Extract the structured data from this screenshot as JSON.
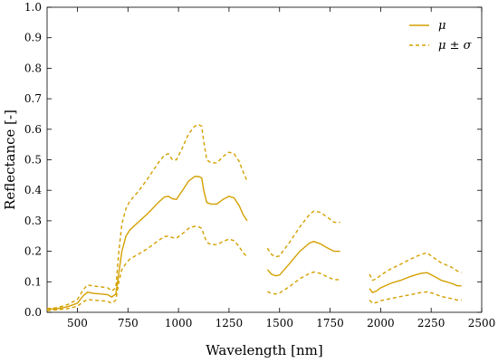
{
  "chart_data": {
    "type": "line",
    "xlabel": "Wavelength [nm]",
    "ylabel": "Reflectance [-]",
    "xlim": [
      350,
      2500
    ],
    "ylim": [
      0,
      1.0
    ],
    "x_ticks": [
      500,
      750,
      1000,
      1250,
      1500,
      1750,
      2000,
      2250,
      2500
    ],
    "x_tick_labels": [
      "500",
      "750",
      "1000",
      "1250",
      "1500",
      "1750",
      "2000",
      "2250",
      "2500"
    ],
    "y_ticks": [
      0.0,
      0.1,
      0.2,
      0.3,
      0.4,
      0.5,
      0.6,
      0.7,
      0.8,
      0.9,
      1.0
    ],
    "y_tick_labels": [
      "0.0",
      "0.1",
      "0.2",
      "0.3",
      "0.4",
      "0.5",
      "0.6",
      "0.7",
      "0.8",
      "0.9",
      "1.0"
    ],
    "grid": false,
    "legend_position": "top-right",
    "color": "#d4a000",
    "legend": [
      {
        "label": "μ",
        "style": "solid"
      },
      {
        "label": "μ ± σ",
        "style": "dashed"
      }
    ],
    "series": [
      {
        "name": "μ",
        "style": "solid",
        "segments": [
          [
            [
              350,
              0.01
            ],
            [
              400,
              0.012
            ],
            [
              450,
              0.018
            ],
            [
              500,
              0.03
            ],
            [
              530,
              0.055
            ],
            [
              550,
              0.066
            ],
            [
              580,
              0.062
            ],
            [
              620,
              0.06
            ],
            [
              650,
              0.058
            ],
            [
              670,
              0.05
            ],
            [
              690,
              0.06
            ],
            [
              705,
              0.13
            ],
            [
              720,
              0.2
            ],
            [
              740,
              0.25
            ],
            [
              760,
              0.27
            ],
            [
              800,
              0.295
            ],
            [
              850,
              0.325
            ],
            [
              900,
              0.36
            ],
            [
              930,
              0.378
            ],
            [
              950,
              0.38
            ],
            [
              970,
              0.372
            ],
            [
              990,
              0.37
            ],
            [
              1020,
              0.4
            ],
            [
              1050,
              0.43
            ],
            [
              1080,
              0.445
            ],
            [
              1100,
              0.445
            ],
            [
              1115,
              0.44
            ],
            [
              1125,
              0.4
            ],
            [
              1140,
              0.36
            ],
            [
              1160,
              0.355
            ],
            [
              1190,
              0.355
            ],
            [
              1220,
              0.37
            ],
            [
              1250,
              0.38
            ],
            [
              1275,
              0.375
            ],
            [
              1300,
              0.35
            ],
            [
              1320,
              0.32
            ],
            [
              1340,
              0.3
            ]
          ],
          [
            [
              1440,
              0.14
            ],
            [
              1460,
              0.125
            ],
            [
              1480,
              0.12
            ],
            [
              1500,
              0.122
            ],
            [
              1550,
              0.16
            ],
            [
              1600,
              0.2
            ],
            [
              1650,
              0.228
            ],
            [
              1670,
              0.232
            ],
            [
              1700,
              0.225
            ],
            [
              1740,
              0.21
            ],
            [
              1770,
              0.2
            ],
            [
              1800,
              0.2
            ]
          ],
          [
            [
              1945,
              0.078
            ],
            [
              1960,
              0.065
            ],
            [
              1980,
              0.07
            ],
            [
              2000,
              0.08
            ],
            [
              2050,
              0.095
            ],
            [
              2100,
              0.105
            ],
            [
              2150,
              0.118
            ],
            [
              2200,
              0.128
            ],
            [
              2230,
              0.13
            ],
            [
              2260,
              0.12
            ],
            [
              2300,
              0.105
            ],
            [
              2350,
              0.095
            ],
            [
              2380,
              0.087
            ],
            [
              2400,
              0.087
            ]
          ]
        ]
      },
      {
        "name": "μ ± σ",
        "style": "dashed",
        "segments": [
          [
            [
              350,
              0.012
            ],
            [
              400,
              0.015
            ],
            [
              450,
              0.025
            ],
            [
              500,
              0.042
            ],
            [
              530,
              0.075
            ],
            [
              550,
              0.09
            ],
            [
              580,
              0.086
            ],
            [
              620,
              0.083
            ],
            [
              650,
              0.08
            ],
            [
              670,
              0.07
            ],
            [
              690,
              0.08
            ],
            [
              705,
              0.2
            ],
            [
              720,
              0.29
            ],
            [
              740,
              0.34
            ],
            [
              760,
              0.365
            ],
            [
              800,
              0.395
            ],
            [
              850,
              0.44
            ],
            [
              900,
              0.49
            ],
            [
              930,
              0.515
            ],
            [
              950,
              0.52
            ],
            [
              970,
              0.5
            ],
            [
              990,
              0.5
            ],
            [
              1020,
              0.54
            ],
            [
              1050,
              0.585
            ],
            [
              1080,
              0.61
            ],
            [
              1100,
              0.615
            ],
            [
              1115,
              0.61
            ],
            [
              1125,
              0.56
            ],
            [
              1140,
              0.5
            ],
            [
              1160,
              0.49
            ],
            [
              1190,
              0.49
            ],
            [
              1220,
              0.51
            ],
            [
              1250,
              0.525
            ],
            [
              1275,
              0.52
            ],
            [
              1300,
              0.495
            ],
            [
              1320,
              0.46
            ],
            [
              1340,
              0.43
            ]
          ],
          [
            [
              1440,
              0.21
            ],
            [
              1460,
              0.19
            ],
            [
              1480,
              0.182
            ],
            [
              1500,
              0.185
            ],
            [
              1550,
              0.23
            ],
            [
              1600,
              0.28
            ],
            [
              1650,
              0.322
            ],
            [
              1670,
              0.332
            ],
            [
              1700,
              0.328
            ],
            [
              1740,
              0.31
            ],
            [
              1770,
              0.295
            ],
            [
              1800,
              0.295
            ]
          ],
          [
            [
              1945,
              0.125
            ],
            [
              1960,
              0.105
            ],
            [
              1980,
              0.11
            ],
            [
              2000,
              0.122
            ],
            [
              2050,
              0.142
            ],
            [
              2100,
              0.158
            ],
            [
              2150,
              0.175
            ],
            [
              2200,
              0.19
            ],
            [
              2230,
              0.195
            ],
            [
              2260,
              0.18
            ],
            [
              2300,
              0.162
            ],
            [
              2350,
              0.148
            ],
            [
              2380,
              0.135
            ],
            [
              2400,
              0.13
            ]
          ]
        ]
      },
      {
        "name": "μ − σ",
        "style": "dashed",
        "segments": [
          [
            [
              350,
              0.006
            ],
            [
              400,
              0.008
            ],
            [
              450,
              0.012
            ],
            [
              500,
              0.02
            ],
            [
              530,
              0.035
            ],
            [
              550,
              0.042
            ],
            [
              580,
              0.04
            ],
            [
              620,
              0.038
            ],
            [
              650,
              0.036
            ],
            [
              670,
              0.03
            ],
            [
              690,
              0.04
            ],
            [
              705,
              0.1
            ],
            [
              720,
              0.14
            ],
            [
              740,
              0.16
            ],
            [
              760,
              0.175
            ],
            [
              800,
              0.19
            ],
            [
              850,
              0.21
            ],
            [
              900,
              0.235
            ],
            [
              930,
              0.248
            ],
            [
              950,
              0.25
            ],
            [
              970,
              0.245
            ],
            [
              990,
              0.243
            ],
            [
              1020,
              0.258
            ],
            [
              1050,
              0.275
            ],
            [
              1080,
              0.282
            ],
            [
              1100,
              0.28
            ],
            [
              1115,
              0.275
            ],
            [
              1125,
              0.255
            ],
            [
              1140,
              0.23
            ],
            [
              1160,
              0.222
            ],
            [
              1190,
              0.222
            ],
            [
              1220,
              0.232
            ],
            [
              1250,
              0.24
            ],
            [
              1275,
              0.235
            ],
            [
              1300,
              0.215
            ],
            [
              1320,
              0.195
            ],
            [
              1340,
              0.182
            ]
          ],
          [
            [
              1440,
              0.068
            ],
            [
              1460,
              0.062
            ],
            [
              1480,
              0.06
            ],
            [
              1500,
              0.063
            ],
            [
              1550,
              0.085
            ],
            [
              1600,
              0.11
            ],
            [
              1650,
              0.128
            ],
            [
              1670,
              0.132
            ],
            [
              1700,
              0.128
            ],
            [
              1740,
              0.115
            ],
            [
              1770,
              0.107
            ],
            [
              1800,
              0.107
            ]
          ],
          [
            [
              1945,
              0.04
            ],
            [
              1960,
              0.03
            ],
            [
              1980,
              0.032
            ],
            [
              2000,
              0.038
            ],
            [
              2050,
              0.045
            ],
            [
              2100,
              0.052
            ],
            [
              2150,
              0.058
            ],
            [
              2200,
              0.065
            ],
            [
              2230,
              0.067
            ],
            [
              2260,
              0.062
            ],
            [
              2300,
              0.052
            ],
            [
              2350,
              0.045
            ],
            [
              2380,
              0.04
            ],
            [
              2400,
              0.04
            ]
          ]
        ]
      }
    ]
  }
}
